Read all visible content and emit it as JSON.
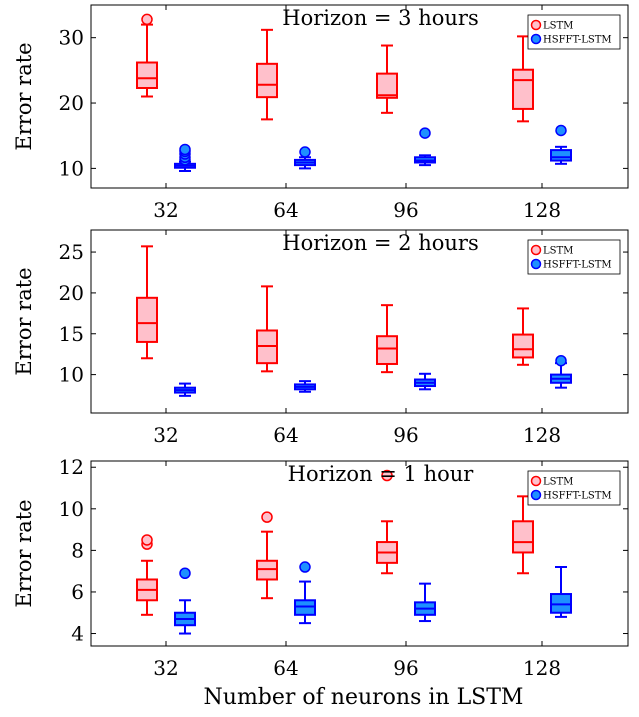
{
  "chart_data": [
    {
      "type": "box",
      "title": "Horizon = 3 hours",
      "xlabel": "",
      "ylabel": "Error rate",
      "categories": [
        "32",
        "64",
        "96",
        "128"
      ],
      "ylim": [
        7,
        35
      ],
      "yticks": [
        10,
        20,
        30
      ],
      "legend_position": "top-right",
      "series": [
        {
          "name": "LSTM",
          "color": "#ff0000",
          "fill": "#ffc0cb",
          "boxes": [
            {
              "whislo": 21,
              "q1": 22.3,
              "med": 23.8,
              "q3": 26.2,
              "whishi": 32,
              "fliers": [
                32.8
              ]
            },
            {
              "whislo": 17.5,
              "q1": 20.9,
              "med": 22.8,
              "q3": 26.0,
              "whishi": 31.2,
              "fliers": []
            },
            {
              "whislo": 18.5,
              "q1": 20.8,
              "med": 21.2,
              "q3": 24.5,
              "whishi": 28.8,
              "fliers": []
            },
            {
              "whislo": 17.2,
              "q1": 19.1,
              "med": 23.5,
              "q3": 25.1,
              "whishi": 30.2,
              "fliers": []
            }
          ]
        },
        {
          "name": "HSFFT-LSTM",
          "color": "#0000ff",
          "fill": "#1e90ff",
          "boxes": [
            {
              "whislo": 9.6,
              "q1": 10.1,
              "med": 10.4,
              "q3": 10.7,
              "whishi": 11.0,
              "fliers": [
                11.3,
                11.7,
                12.2,
                12.6,
                12.9
              ]
            },
            {
              "whislo": 10.0,
              "q1": 10.5,
              "med": 10.9,
              "q3": 11.3,
              "whishi": 11.7,
              "fliers": [
                12.5
              ]
            },
            {
              "whislo": 10.5,
              "q1": 10.9,
              "med": 11.2,
              "q3": 11.7,
              "whishi": 12.0,
              "fliers": [
                15.4
              ]
            },
            {
              "whislo": 10.7,
              "q1": 11.2,
              "med": 11.7,
              "q3": 12.8,
              "whishi": 13.3,
              "fliers": [
                15.8
              ]
            }
          ]
        }
      ]
    },
    {
      "type": "box",
      "title": "Horizon = 2 hours",
      "xlabel": "",
      "ylabel": "Error rate",
      "categories": [
        "32",
        "64",
        "96",
        "128"
      ],
      "ylim": [
        5.3,
        27.7
      ],
      "yticks": [
        10,
        15,
        20,
        25
      ],
      "legend_position": "top-right",
      "series": [
        {
          "name": "LSTM",
          "color": "#ff0000",
          "fill": "#ffc0cb",
          "boxes": [
            {
              "whislo": 12,
              "q1": 14,
              "med": 16.3,
              "q3": 19.4,
              "whishi": 25.7,
              "fliers": []
            },
            {
              "whislo": 10.4,
              "q1": 11.4,
              "med": 13.5,
              "q3": 15.4,
              "whishi": 20.8,
              "fliers": []
            },
            {
              "whislo": 10.3,
              "q1": 11.3,
              "med": 13.2,
              "q3": 14.7,
              "whishi": 18.5,
              "fliers": []
            },
            {
              "whislo": 11.2,
              "q1": 12.1,
              "med": 13.1,
              "q3": 14.9,
              "whishi": 18.1,
              "fliers": []
            }
          ]
        },
        {
          "name": "HSFFT-LSTM",
          "color": "#0000ff",
          "fill": "#1e90ff",
          "boxes": [
            {
              "whislo": 7.4,
              "q1": 7.8,
              "med": 8.1,
              "q3": 8.4,
              "whishi": 8.9,
              "fliers": []
            },
            {
              "whislo": 7.9,
              "q1": 8.2,
              "med": 8.5,
              "q3": 8.8,
              "whishi": 9.2,
              "fliers": []
            },
            {
              "whislo": 8.2,
              "q1": 8.6,
              "med": 9.0,
              "q3": 9.4,
              "whishi": 10.1,
              "fliers": []
            },
            {
              "whislo": 8.4,
              "q1": 9.0,
              "med": 9.5,
              "q3": 10.0,
              "whishi": 11.4,
              "fliers": [
                11.7
              ]
            }
          ]
        }
      ]
    },
    {
      "type": "box",
      "title": "Horizon = 1 hour",
      "xlabel": "Number of neurons in LSTM",
      "ylabel": "Error rate",
      "categories": [
        "32",
        "64",
        "96",
        "128"
      ],
      "ylim": [
        3.4,
        12.3
      ],
      "yticks": [
        4,
        6,
        8,
        10,
        12
      ],
      "legend_position": "top-right",
      "series": [
        {
          "name": "LSTM",
          "color": "#ff0000",
          "fill": "#ffc0cb",
          "boxes": [
            {
              "whislo": 4.9,
              "q1": 5.6,
              "med": 6.1,
              "q3": 6.6,
              "whishi": 7.5,
              "fliers": [
                8.3,
                8.5
              ]
            },
            {
              "whislo": 5.7,
              "q1": 6.6,
              "med": 7.1,
              "q3": 7.5,
              "whishi": 8.9,
              "fliers": [
                9.6
              ]
            },
            {
              "whislo": 6.9,
              "q1": 7.4,
              "med": 7.9,
              "q3": 8.4,
              "whishi": 9.4,
              "fliers": [
                11.6
              ]
            },
            {
              "whislo": 6.9,
              "q1": 7.9,
              "med": 8.4,
              "q3": 9.4,
              "whishi": 10.6,
              "fliers": []
            }
          ]
        },
        {
          "name": "HSFFT-LSTM",
          "color": "#0000ff",
          "fill": "#1e90ff",
          "boxes": [
            {
              "whislo": 4.0,
              "q1": 4.4,
              "med": 4.7,
              "q3": 5.0,
              "whishi": 5.6,
              "fliers": [
                6.9
              ]
            },
            {
              "whislo": 4.5,
              "q1": 4.9,
              "med": 5.3,
              "q3": 5.6,
              "whishi": 6.5,
              "fliers": [
                7.2
              ]
            },
            {
              "whislo": 4.6,
              "q1": 4.9,
              "med": 5.2,
              "q3": 5.5,
              "whishi": 6.4,
              "fliers": []
            },
            {
              "whislo": 4.8,
              "q1": 5.0,
              "med": 5.4,
              "q3": 5.9,
              "whishi": 7.2,
              "fliers": []
            }
          ]
        }
      ]
    }
  ]
}
